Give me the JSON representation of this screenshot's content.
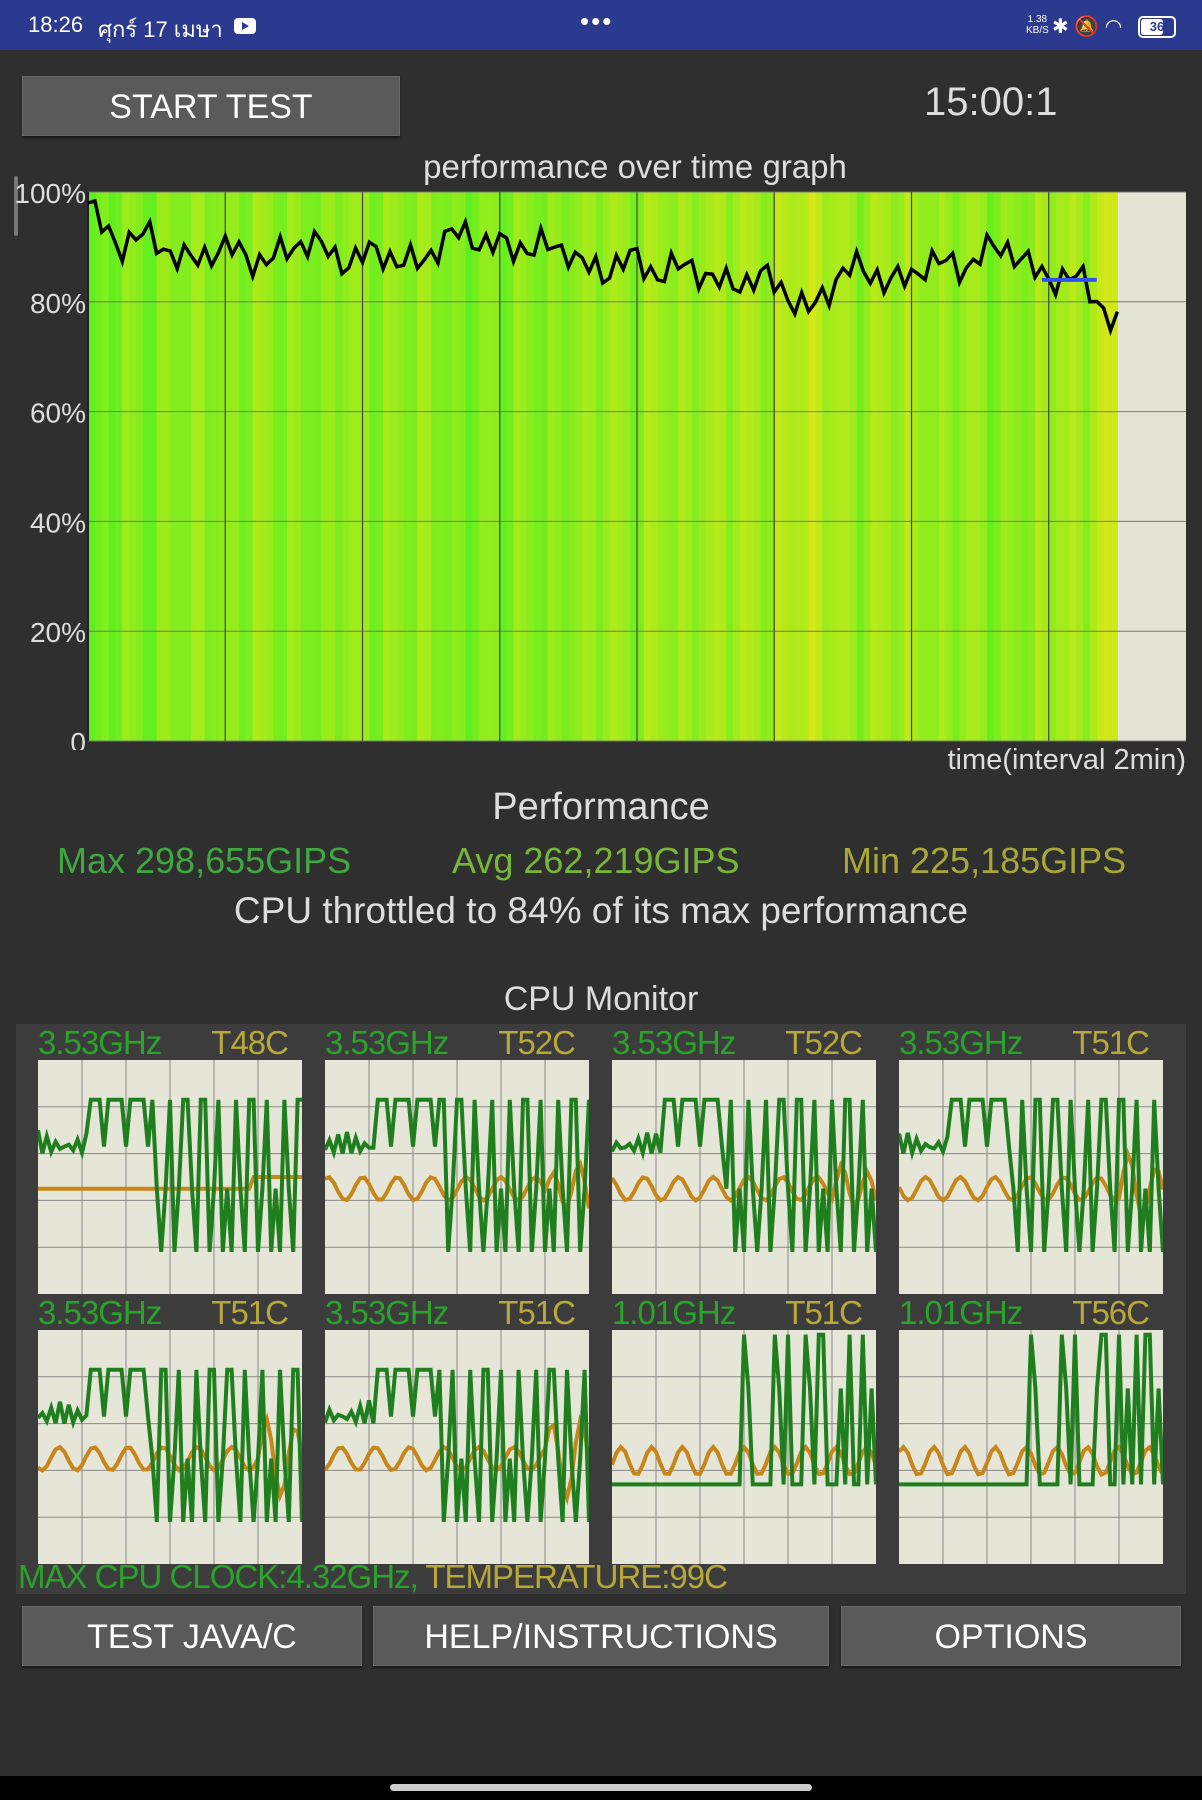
{
  "status_bar": {
    "time": "18:26",
    "date": "ศุกร์ 17 เมษา",
    "dots": "•••",
    "net_speed": "1.38",
    "net_unit": "KB/S",
    "icons": [
      "bluetooth-icon",
      "bell-muted-icon",
      "wifi-icon"
    ],
    "battery": "36"
  },
  "controls": {
    "start_label": "START TEST",
    "timer": "15:00:1"
  },
  "graph": {
    "title": "performance over time graph",
    "time_label": "time(interval 2min)"
  },
  "chart_data": {
    "type": "line",
    "title": "performance over time graph",
    "xlabel": "time(interval 2min)",
    "ylabel": "",
    "ylim": [
      0,
      100
    ],
    "yticks": [
      "100%",
      "80%",
      "60%",
      "40%",
      "20%",
      "0"
    ],
    "x_interval_minutes": 2,
    "x_minutes": [
      0,
      0.5,
      1,
      1.5,
      2,
      2.5,
      3,
      3.5,
      4,
      4.5,
      5,
      5.5,
      6,
      6.5,
      7,
      7.5,
      8,
      8.5,
      9,
      9.5,
      10,
      10.5,
      11,
      11.5,
      12,
      12.5,
      13,
      13.5,
      14,
      14.5,
      15
    ],
    "series": [
      {
        "values": [
          98,
          91,
          90,
          89,
          88,
          89,
          89,
          90,
          88,
          87,
          90,
          91,
          92,
          88,
          91,
          84,
          88,
          86,
          84,
          85,
          82,
          80,
          84,
          86,
          84,
          87,
          89,
          88,
          86,
          82,
          77
        ]
      }
    ],
    "colors": {
      "line": "#000000",
      "plot_bg": "#e4e4d4",
      "grid": "#777777",
      "fill_green": "#55f020",
      "fill_yellow": "#d8f018",
      "avg_marker": "#3050ff"
    }
  },
  "performance": {
    "heading": "Performance",
    "max": "Max 298,655GIPS",
    "avg": "Avg 262,219GIPS",
    "min": "Min 225,185GIPS",
    "throttle": "CPU throttled to 84% of its max performance"
  },
  "cpu_monitor": {
    "title": "CPU Monitor",
    "cores": [
      {
        "freq": "3.53GHz",
        "temp": "T48C"
      },
      {
        "freq": "3.53GHz",
        "temp": "T52C"
      },
      {
        "freq": "3.53GHz",
        "temp": "T52C"
      },
      {
        "freq": "3.53GHz",
        "temp": "T51C"
      },
      {
        "freq": "3.53GHz",
        "temp": "T51C"
      },
      {
        "freq": "3.53GHz",
        "temp": "T51C"
      },
      {
        "freq": "1.01GHz",
        "temp": "T51C"
      },
      {
        "freq": "1.01GHz",
        "temp": "T56C"
      }
    ],
    "max_clock": "MAX CPU CLOCK:4.32GHz, ",
    "max_temp": "TEMPERATURE:99C"
  },
  "buttons": {
    "test_java": "TEST JAVA/C",
    "help": "HELP/INSTRUCTIONS",
    "options": "OPTIONS"
  }
}
